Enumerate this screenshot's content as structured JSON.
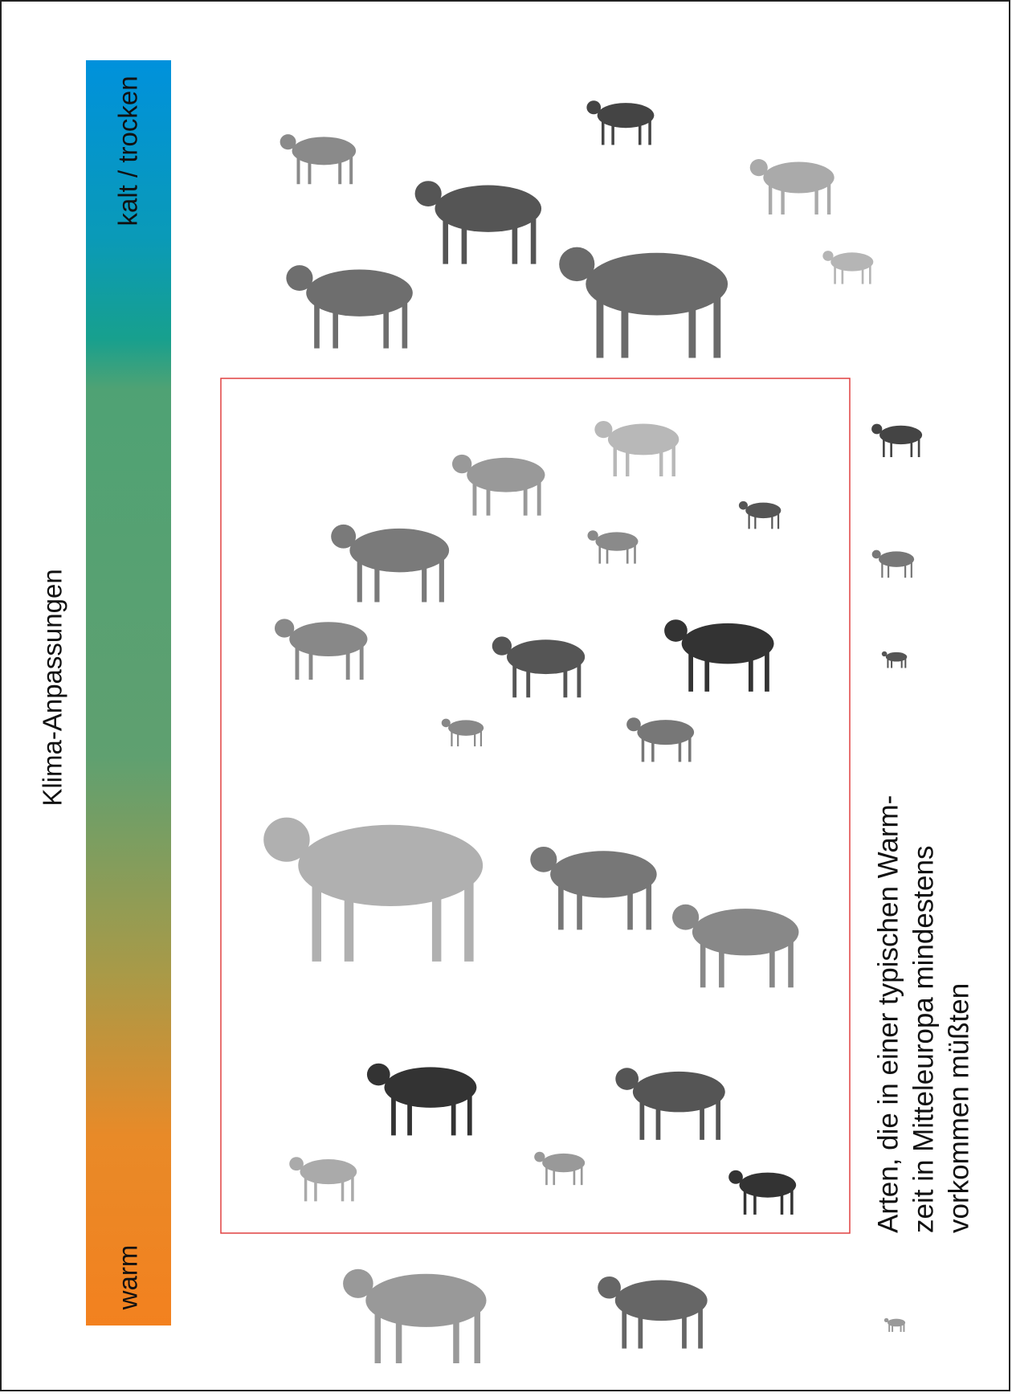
{
  "axis_label": "Klima-Anpassungen",
  "scale": {
    "top": "kalt / trocken",
    "bottom": "warm"
  },
  "caption": {
    "lines": [
      "Arten, die in einer typischen Warm-",
      "zeit in Mitteleuropa mindestens",
      "vorkommen müßten"
    ]
  }
}
